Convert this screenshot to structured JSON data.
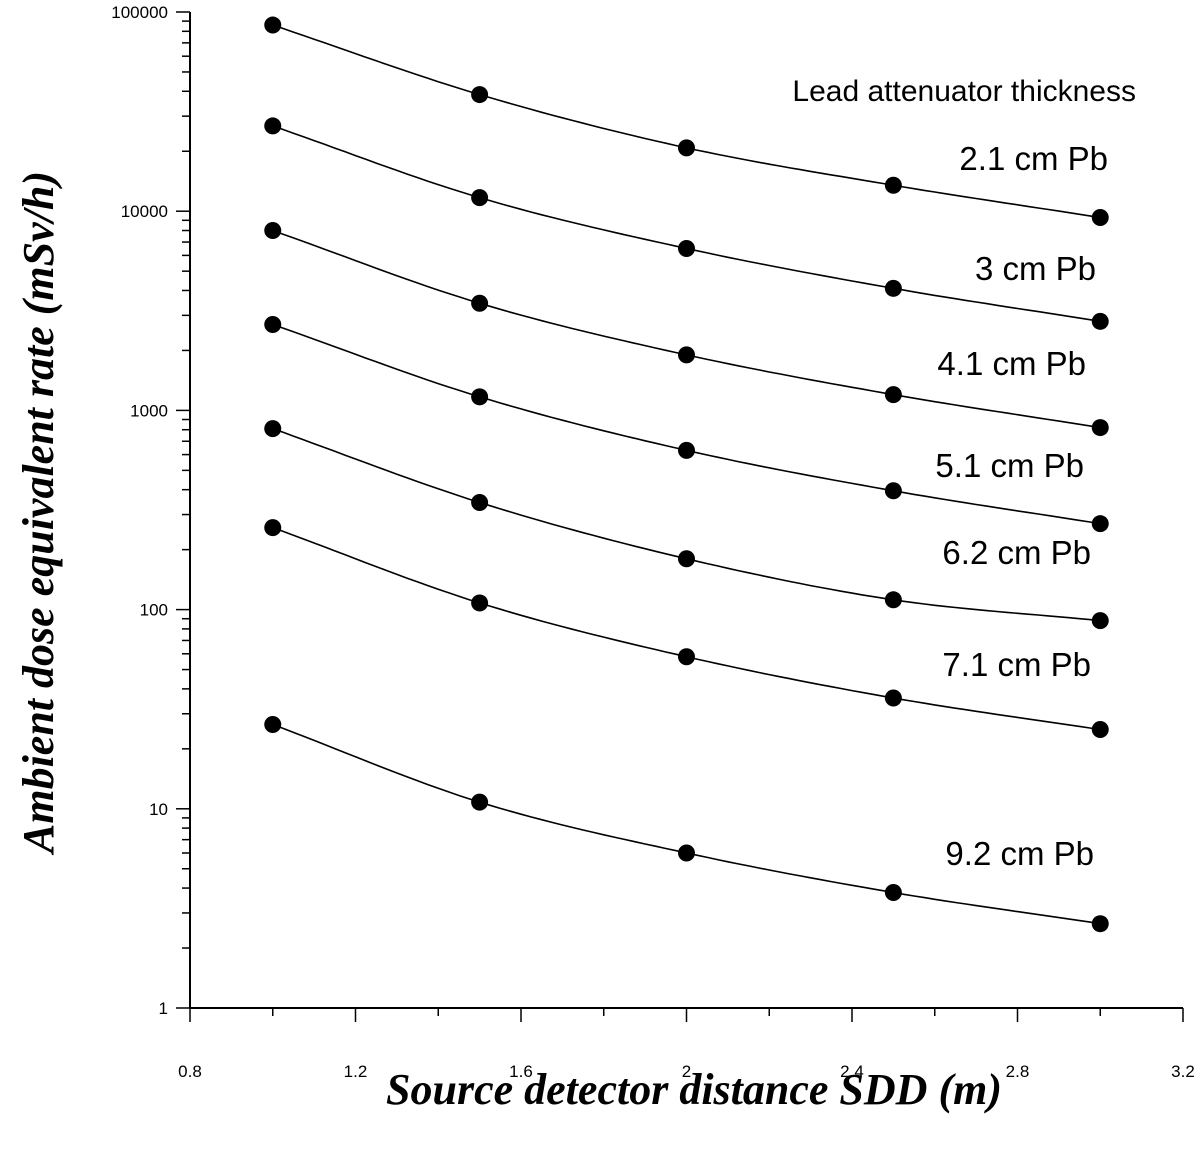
{
  "chart_data": {
    "type": "line",
    "title": "",
    "xlabel": "Source detector distance SDD (m)",
    "ylabel": "Ambient dose equivalent rate (mSv/h)",
    "xlim": [
      0.8,
      3.2
    ],
    "ylim": [
      1,
      100000
    ],
    "yscale": "log",
    "grid": false,
    "x_ticks": [
      "0.8",
      "1.2",
      "1.6",
      "2",
      "2.4",
      "2.8",
      "3.2"
    ],
    "y_ticks": [
      "1",
      "10",
      "100",
      "1000",
      "10000",
      "100000"
    ],
    "annotation": "Lead attenuator thickness",
    "x": [
      1.0,
      1.5,
      2.0,
      2.5,
      3.0
    ],
    "series": [
      {
        "name": "2.1 cm Pb",
        "values": [
          86000,
          38500,
          20800,
          13500,
          9300
        ]
      },
      {
        "name": "3 cm Pb",
        "values": [
          26800,
          11700,
          6500,
          4100,
          2800
        ]
      },
      {
        "name": "4.1 cm Pb",
        "values": [
          8000,
          3450,
          1900,
          1200,
          820
        ]
      },
      {
        "name": "5.1 cm Pb",
        "values": [
          2700,
          1170,
          630,
          395,
          270
        ]
      },
      {
        "name": "6.2 cm Pb",
        "values": [
          810,
          345,
          180,
          112,
          88
        ]
      },
      {
        "name": "7.1 cm Pb",
        "values": [
          258,
          108,
          58,
          36,
          25
        ]
      },
      {
        "name": "9.2 cm Pb",
        "values": [
          26.5,
          10.8,
          6.0,
          3.8,
          2.65
        ]
      }
    ]
  }
}
